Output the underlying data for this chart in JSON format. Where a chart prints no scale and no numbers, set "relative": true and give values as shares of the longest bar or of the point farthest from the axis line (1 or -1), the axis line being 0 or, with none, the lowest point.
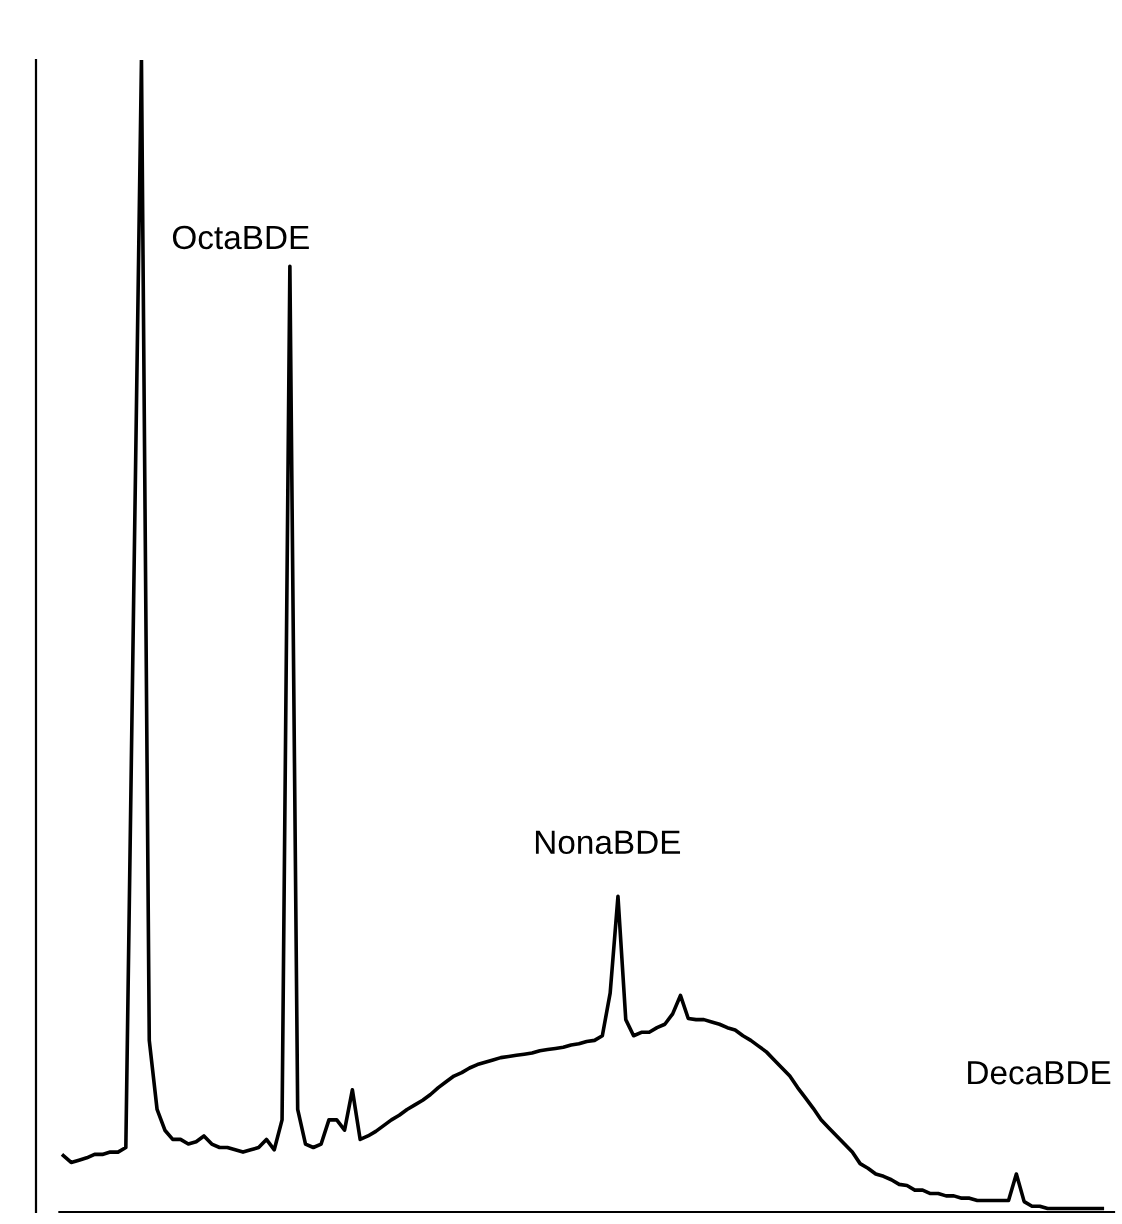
{
  "chart_data": {
    "type": "line",
    "relative": true,
    "tick_labels": false,
    "marker": "none",
    "line_style": "solid",
    "categories": [
      null,
      null,
      null,
      null,
      null,
      null,
      null,
      null,
      null,
      null,
      null,
      null,
      null,
      null,
      null,
      null,
      null,
      null,
      null,
      null,
      null,
      null,
      null,
      null,
      null,
      null,
      null,
      null,
      null,
      null,
      null,
      null,
      null,
      null,
      null,
      null,
      null,
      null,
      null,
      null,
      null,
      null,
      null,
      null,
      null,
      null,
      null,
      null,
      null,
      null,
      null,
      null,
      null,
      null,
      null,
      null,
      null,
      null,
      null,
      null,
      null,
      null,
      null,
      null,
      null,
      null,
      null,
      null,
      null,
      null,
      null,
      null,
      null,
      null,
      null,
      null,
      null,
      null,
      null,
      null,
      null,
      null,
      null,
      null,
      null,
      null,
      null,
      null,
      null,
      null,
      null,
      null,
      null,
      null,
      null,
      null,
      null,
      null,
      null,
      null,
      null,
      null,
      null,
      null,
      null,
      null,
      null,
      null,
      null,
      null,
      null,
      null,
      null,
      null,
      null,
      null,
      null,
      null,
      null,
      null,
      null,
      null,
      null,
      null,
      null,
      null,
      null,
      null,
      null,
      null,
      null,
      null,
      null,
      null
    ],
    "series": [
      {
        "color": "#000000",
        "values": [
          0.049,
          0.043,
          0.045,
          0.047,
          0.05,
          0.05,
          0.052,
          0.052,
          0.056,
          0.531,
          1,
          0.149,
          0.089,
          0.071,
          0.063,
          0.063,
          0.059,
          0.061,
          0.066,
          0.059,
          0.056,
          0.056,
          0.054,
          0.052,
          0.054,
          0.056,
          0.063,
          0.054,
          0.08,
          0.821,
          0.089,
          0.059,
          0.056,
          0.059,
          0.08,
          0.08,
          0.071,
          0.106,
          0.063,
          0.066,
          0.07,
          0.075,
          0.08,
          0.084,
          0.089,
          0.093,
          0.097,
          0.102,
          0.108,
          0.113,
          0.118,
          0.121,
          0.125,
          0.128,
          0.13,
          0.132,
          0.134,
          0.135,
          0.136,
          0.137,
          0.138,
          0.14,
          0.141,
          0.142,
          0.143,
          0.145,
          0.146,
          0.148,
          0.149,
          0.153,
          0.19,
          0.274,
          0.167,
          0.153,
          0.156,
          0.156,
          0.16,
          0.163,
          0.172,
          0.188,
          0.168,
          0.167,
          0.167,
          0.165,
          0.163,
          0.16,
          0.158,
          0.153,
          0.149,
          0.144,
          0.139,
          0.132,
          0.125,
          0.118,
          0.108,
          0.099,
          0.09,
          0.08,
          0.073,
          0.066,
          0.059,
          0.052,
          0.042,
          0.038,
          0.033,
          0.031,
          0.028,
          0.024,
          0.023,
          0.019,
          0.019,
          0.016,
          0.016,
          0.014,
          0.014,
          0.012,
          0.012,
          0.01,
          0.01,
          0.01,
          0.01,
          0.01,
          0.033,
          0.009,
          0.005,
          0.005,
          0.003,
          0.003,
          0.003,
          0.003,
          0.003,
          0.003,
          0.003,
          0.003
        ]
      }
    ],
    "annotations": [
      "OctaBDE",
      "NonaBDE",
      "DecaBDE"
    ]
  }
}
